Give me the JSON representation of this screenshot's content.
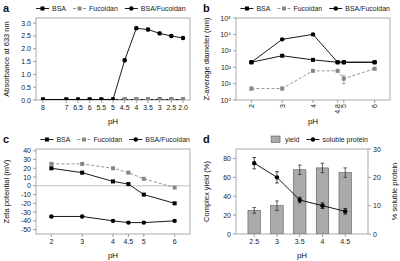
{
  "chart_data": [
    {
      "type": "line",
      "title": "a",
      "xlabel": "pH",
      "ylabel": "Absorbance at 633 nm",
      "x": [
        8,
        7,
        6.5,
        6,
        5.5,
        5,
        4.5,
        4,
        3.5,
        3,
        2.5,
        2.0
      ],
      "series": [
        {
          "name": "BSA",
          "color": "black",
          "marker": "square",
          "line_style": "solid",
          "values": [
            0.02,
            0.02,
            0.02,
            0.02,
            0.02,
            0.02,
            0.02,
            0.02,
            0.02,
            0.02,
            0.02,
            0.02
          ],
          "errors": [
            0.005,
            0.005,
            0.005,
            0.005,
            0.005,
            0.005,
            0.005,
            0.005,
            0.005,
            0.005,
            0.005,
            0.005
          ]
        },
        {
          "name": "Fucoidan",
          "color": "#888888",
          "marker": "square",
          "line_style": "dashed",
          "values": [
            0.02,
            0.02,
            0.02,
            0.02,
            0.02,
            0.02,
            0.02,
            0.02,
            0.02,
            0.02,
            0.02,
            0.02
          ],
          "errors": [
            0.005,
            0.005,
            0.005,
            0.005,
            0.005,
            0.005,
            0.005,
            0.005,
            0.005,
            0.005,
            0.005,
            0.005
          ]
        },
        {
          "name": "BSA/Fucoidan",
          "color": "black",
          "marker": "circle",
          "line_style": "solid",
          "values": [
            0.02,
            0.02,
            0.02,
            0.02,
            0.02,
            0.02,
            1.55,
            2.8,
            2.75,
            2.6,
            2.5,
            2.42
          ],
          "errors": [
            0.005,
            0.005,
            0.005,
            0.005,
            0.005,
            0.005,
            0.06,
            0.05,
            0.05,
            0.05,
            0.04,
            0.04
          ]
        }
      ],
      "xlim": [
        8.3,
        1.7
      ],
      "ylim": [
        0.0,
        3.2
      ],
      "xticks": [
        8,
        7,
        6.5,
        6,
        5.5,
        5,
        4.5,
        4,
        3.5,
        3,
        2.5,
        {
          "value": 2.0,
          "label": "2.0"
        }
      ],
      "yticks": [
        {
          "value": 0.0,
          "label": "0.0"
        },
        0.5,
        {
          "value": 1.0,
          "label": "1.0"
        },
        1.5,
        {
          "value": 2.0,
          "label": "2.0"
        },
        2.5,
        {
          "value": 3.0,
          "label": "3.0"
        }
      ],
      "grid": false,
      "legend": "upper left"
    },
    {
      "type": "line",
      "title": "b",
      "xlabel": "pH",
      "ylabel": "Z-average diameter (nm)",
      "x": [
        2,
        3,
        4,
        4.8,
        5,
        6
      ],
      "series": [
        {
          "name": "BSA",
          "color": "black",
          "marker": "square",
          "line_style": "solid",
          "values": [
            200,
            500,
            280,
            200,
            200,
            200
          ],
          "errors": [
            15,
            40,
            25,
            15,
            15,
            15
          ]
        },
        {
          "name": "Fucoidan",
          "color": "#888888",
          "marker": "square",
          "line_style": "dashed",
          "values": [
            5,
            5,
            60,
            60,
            20,
            80
          ],
          "errors": [
            1,
            1,
            8,
            8,
            10,
            5
          ]
        },
        {
          "name": "BSA/Fucoidan",
          "color": "black",
          "marker": "circle",
          "line_style": "solid",
          "values": [
            200,
            5000,
            10000,
            200,
            200,
            200
          ],
          "errors": [
            15,
            600,
            1200,
            15,
            15,
            15
          ]
        }
      ],
      "log": "y",
      "xlim": [
        1.5,
        6.5
      ],
      "ylim": [
        1,
        100000
      ],
      "xticks": [
        2,
        3,
        4,
        4.8,
        5,
        6
      ],
      "yticks": [
        {
          "value": 1,
          "label": "10⁰"
        },
        {
          "value": 10,
          "label": "10¹"
        },
        {
          "value": 100,
          "label": "10²"
        },
        {
          "value": 1000,
          "label": "10³"
        },
        {
          "value": 10000,
          "label": "10⁴"
        },
        {
          "value": 100000,
          "label": "10⁵"
        }
      ],
      "grid": false,
      "legend": "upper right"
    },
    {
      "type": "line",
      "title": "c",
      "xlabel": "pH",
      "ylabel": "Zeta potential (mV)",
      "x": [
        2,
        3,
        4,
        4.5,
        5,
        6
      ],
      "series": [
        {
          "name": "BSA",
          "color": "black",
          "marker": "square",
          "line_style": "solid",
          "values": [
            20,
            15,
            5,
            2,
            -10,
            -20
          ],
          "errors": [
            1,
            1,
            1,
            1,
            1,
            1
          ]
        },
        {
          "name": "Fucoidan",
          "color": "#888888",
          "marker": "square",
          "line_style": "dashed",
          "values": [
            25,
            25,
            20,
            15,
            8,
            -2
          ],
          "errors": [
            1,
            1,
            1,
            1,
            1,
            1
          ]
        },
        {
          "name": "BSA/Fucoidan",
          "color": "black",
          "marker": "circle",
          "line_style": "solid",
          "values": [
            -35,
            -35,
            -40,
            -42,
            -42,
            -40
          ],
          "errors": [
            1,
            1,
            1,
            1,
            1,
            1
          ]
        }
      ],
      "xlim": [
        1.5,
        6.5
      ],
      "ylim": [
        -55,
        42
      ],
      "xticks": [
        2,
        3,
        4,
        4.5,
        5,
        6
      ],
      "yticks": [
        -50,
        -40,
        -30,
        -20,
        -10,
        0,
        10,
        20,
        30,
        40
      ],
      "grid": false,
      "legend": "upper right"
    },
    {
      "type": "bar",
      "title": "d",
      "xlabel": "pH",
      "ylabel": "Complex yield (%)",
      "y2label": "% soluble protein",
      "x": [
        4.5,
        4,
        3.5,
        3,
        2.5
      ],
      "series": [
        {
          "name": "yield",
          "type": "bar",
          "color": "#aaaaaa",
          "values": [
            65,
            70,
            68,
            30,
            25
          ],
          "errors": [
            5,
            5,
            5,
            5,
            3
          ]
        },
        {
          "name": "soluble protein",
          "type": "line",
          "axis": "y2",
          "color": "black",
          "marker": "circle",
          "line_style": "solid",
          "values": [
            8,
            10,
            12,
            20,
            25
          ],
          "errors": [
            1,
            1,
            1,
            2,
            2
          ]
        }
      ],
      "xlim": [
        2.1,
        5.0
      ],
      "ylim": [
        0,
        90
      ],
      "y2lim": [
        0,
        30
      ],
      "xticks": [
        4.5,
        4,
        3.5,
        3,
        2.5
      ],
      "yticks": [
        0,
        20,
        40,
        60,
        80
      ],
      "y2ticks": [
        0,
        10,
        20,
        30
      ],
      "grid": false,
      "legend": "upper right"
    }
  ]
}
